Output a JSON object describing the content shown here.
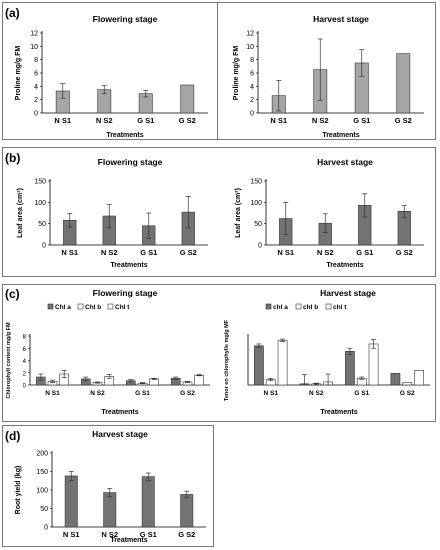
{
  "panels": [
    {
      "label": "(a)"
    },
    {
      "label": "(b)"
    },
    {
      "label": "(c)"
    },
    {
      "label": "(d)"
    }
  ],
  "chart_data": [
    {
      "id": "a1",
      "type": "bar",
      "title": "Flowering stage",
      "xlabel": "Treatments",
      "ylabel": "Proline mg/g FM",
      "categories": [
        "N S1",
        "N S2",
        "G S1",
        "G S2"
      ],
      "series": [
        {
          "values": [
            3.3,
            3.5,
            2.9,
            4.2
          ],
          "errors": [
            1.1,
            0.6,
            0.5,
            0
          ],
          "color": "#a6a6a6"
        }
      ],
      "ylim": [
        0,
        12
      ],
      "yticks": [
        0,
        2,
        4,
        6,
        8,
        10,
        12
      ],
      "grid": false
    },
    {
      "id": "a2",
      "type": "bar",
      "title": "Harvest stage",
      "xlabel": "Treatments",
      "ylabel": "Proline mg/g FM",
      "categories": [
        "N S1",
        "N S2",
        "G S1",
        "G S2"
      ],
      "series": [
        {
          "values": [
            2.6,
            6.5,
            7.5,
            8.9
          ],
          "errors": [
            2.3,
            4.6,
            2.0,
            0
          ],
          "color": "#a6a6a6"
        }
      ],
      "ylim": [
        0,
        12
      ],
      "yticks": [
        0,
        2,
        4,
        6,
        8,
        10,
        12
      ],
      "grid": false
    },
    {
      "id": "b1",
      "type": "bar",
      "title": "Flowering stage",
      "xlabel": "Treatments",
      "ylabel": "Leaf area (cm²)",
      "categories": [
        "N S1",
        "N S2",
        "G S1",
        "G S2"
      ],
      "series": [
        {
          "values": [
            58,
            68,
            45,
            77
          ],
          "errors": [
            16,
            27,
            30,
            37
          ],
          "color": "#737373"
        }
      ],
      "ylim": [
        0,
        150
      ],
      "yticks": [
        0,
        50,
        100,
        150
      ],
      "grid": false
    },
    {
      "id": "b2",
      "type": "bar",
      "title": "Harvest stage",
      "xlabel": "Treatments",
      "ylabel": "Leaf area (cm²)",
      "categories": [
        "N S1",
        "N S2",
        "G S1",
        "G S2"
      ],
      "series": [
        {
          "values": [
            62,
            51,
            93,
            79
          ],
          "errors": [
            38,
            22,
            27,
            14
          ],
          "color": "#737373"
        }
      ],
      "ylim": [
        0,
        150
      ],
      "yticks": [
        0,
        50,
        100,
        150
      ],
      "grid": false
    },
    {
      "id": "c1",
      "type": "bar",
      "title": "Flowering stage",
      "xlabel": "Treatments",
      "ylabel": "Chlorophyll content mg/g FM",
      "categories": [
        "N S1",
        "N S2",
        "G S1",
        "G S2"
      ],
      "series": [
        {
          "name": "Chl a",
          "values": [
            1.3,
            1.0,
            0.7,
            1.1
          ],
          "errors": [
            0.5,
            0.3,
            0.2,
            0.2
          ],
          "color": "#737373"
        },
        {
          "name": "Chl b",
          "values": [
            0.6,
            0.4,
            0.3,
            0.5
          ],
          "errors": [
            0.2,
            0.1,
            0.1,
            0.1
          ],
          "color": "#ffffff"
        },
        {
          "name": "Chl t",
          "values": [
            1.8,
            1.4,
            1.0,
            1.6
          ],
          "errors": [
            0.6,
            0.3,
            0.1,
            0.1
          ],
          "color": "#ffffff"
        }
      ],
      "ylim": [
        0,
        8
      ],
      "yticks": [
        0,
        2,
        4,
        6,
        8
      ],
      "legend": "top",
      "grid": false
    },
    {
      "id": "c2",
      "type": "bar",
      "title": "Harvest stage",
      "xlabel": "Treatments",
      "ylabel": "Tenor en chlorophylle mg/g MF",
      "categories": [
        "N S1",
        "N S2",
        "G S1",
        "G S2"
      ],
      "series": [
        {
          "name": "chl a",
          "values": [
            6.4,
            0.2,
            5.5,
            1.9
          ],
          "errors": [
            0.3,
            1.5,
            0.5,
            0
          ],
          "color": "#737373"
        },
        {
          "name": "chl b",
          "values": [
            0.9,
            0.2,
            1.1,
            0.4
          ],
          "errors": [
            0.2,
            0.1,
            0.2,
            0
          ],
          "color": "#ffffff"
        },
        {
          "name": "chl t",
          "values": [
            7.3,
            0.5,
            6.7,
            2.4
          ],
          "errors": [
            0.2,
            1.3,
            0.7,
            0
          ],
          "color": "#ffffff"
        }
      ],
      "ylim": [
        0,
        8
      ],
      "yticks": [],
      "legend": "top",
      "grid": false
    },
    {
      "id": "d1",
      "type": "bar",
      "title": "Harvest stage",
      "xlabel": "Treatments",
      "ylabel": "Root yield (kg)",
      "categories": [
        "N S1",
        "N S2",
        "G S1",
        "G S2"
      ],
      "series": [
        {
          "values": [
            138,
            93,
            136,
            88
          ],
          "errors": [
            12,
            11,
            10,
            9
          ],
          "color": "#737373"
        }
      ],
      "ylim": [
        0,
        200
      ],
      "yticks": [
        0,
        50,
        100,
        150,
        200
      ],
      "grid": false
    }
  ]
}
